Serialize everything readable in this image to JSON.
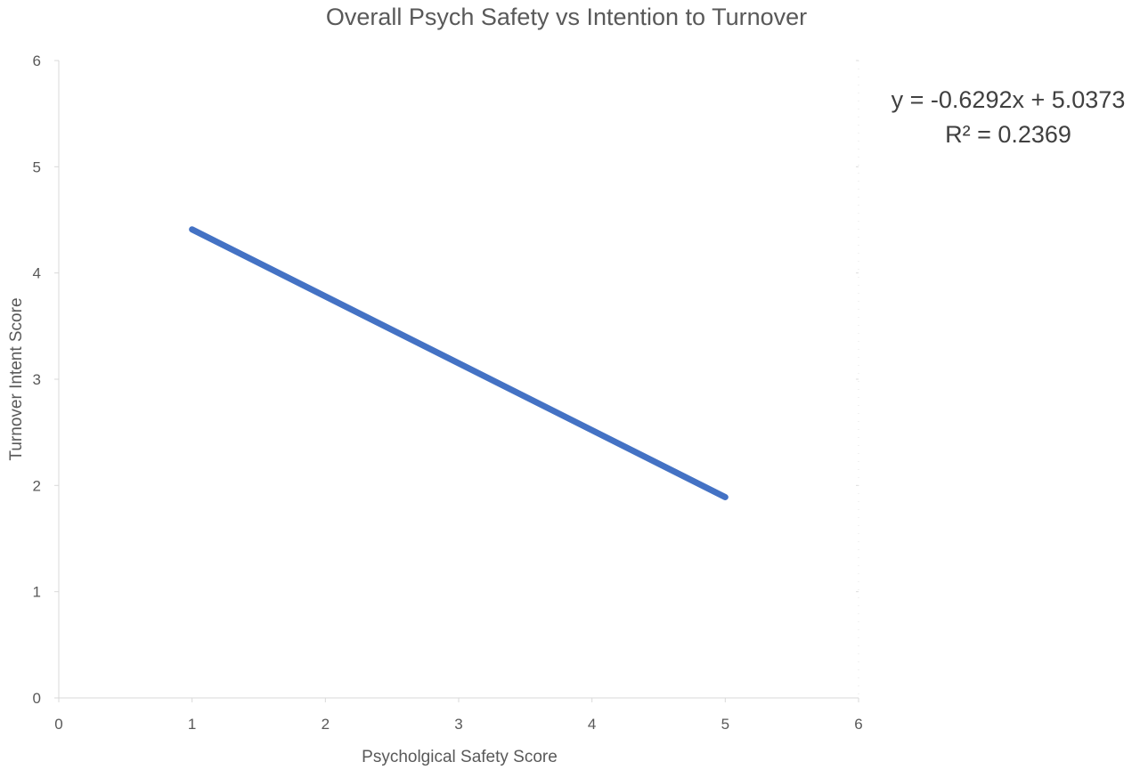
{
  "chart_data": {
    "type": "line",
    "title": "Overall Psych Safety vs Intention to Turnover",
    "xlabel": "Psycholgical Safety Score",
    "ylabel": "Turnover Intent Score",
    "xlim": [
      0,
      6
    ],
    "ylim": [
      0,
      6
    ],
    "x_ticks": [
      "0",
      "1",
      "2",
      "3",
      "4",
      "5",
      "6"
    ],
    "y_ticks": [
      "0",
      "1",
      "2",
      "3",
      "4",
      "5",
      "6"
    ],
    "series": [
      {
        "x": [
          1,
          5
        ],
        "y": [
          4.41,
          1.89
        ],
        "color": "#4472C4"
      }
    ],
    "trendline_equation": "y = -0.6292x + 5.0373",
    "r_squared": "R² = 0.2369",
    "grid": false
  }
}
